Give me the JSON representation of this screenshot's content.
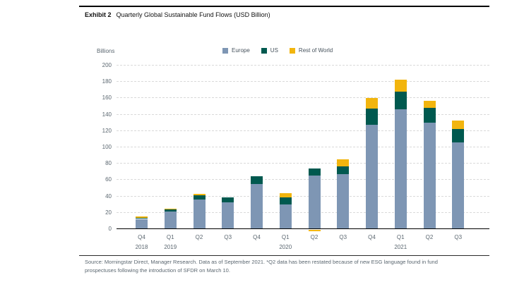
{
  "header": {
    "exhibit_label": "Exhibit 2",
    "title": "Quarterly Global Sustainable Fund Flows (USD Billion)"
  },
  "axis": {
    "unit_label": "Billions"
  },
  "legend": [
    {
      "label": "Europe",
      "color": "#7E96B4"
    },
    {
      "label": "US",
      "color": "#00594F"
    },
    {
      "label": "Rest of World",
      "color": "#F2B50E"
    }
  ],
  "chart_data": {
    "type": "bar",
    "stacked": true,
    "title": "Quarterly Global Sustainable Fund Flows (USD Billion)",
    "categories": [
      "Q4 2018",
      "Q1 2019",
      "Q2 2019",
      "Q3 2019",
      "Q4 2019",
      "Q1 2020",
      "Q2 2020",
      "Q3 2020",
      "Q4 2020",
      "Q1 2021",
      "Q2 2021",
      "Q3 2021"
    ],
    "series": [
      {
        "name": "Europe",
        "color": "#7E96B4",
        "values": [
          12.5,
          21.5,
          36.5,
          33,
          55.5,
          30,
          65.5,
          67,
          128,
          146.5,
          130,
          106
        ]
      },
      {
        "name": "US",
        "color": "#00594F",
        "values": [
          1,
          3,
          4.5,
          5.5,
          9,
          9,
          8.5,
          9.5,
          19.5,
          22,
          18.5,
          16
        ]
      },
      {
        "name": "Rest of World",
        "color": "#F2B50E",
        "values": [
          2,
          0.5,
          2.5,
          0,
          0,
          5,
          -1.5,
          9,
          12.5,
          14.5,
          8.5,
          11
        ]
      }
    ],
    "xlabel": "",
    "ylabel": "Billions",
    "ylim": [
      0,
      200
    ],
    "y_ticks": [
      0,
      20,
      40,
      60,
      80,
      100,
      120,
      140,
      160,
      180,
      200
    ],
    "grid": "horizontal-dashed",
    "legend_position": "top"
  },
  "x_axis": {
    "quarters": [
      "Q4",
      "Q1",
      "Q2",
      "Q3",
      "Q4",
      "Q1",
      "Q2",
      "Q3",
      "Q4",
      "Q1",
      "Q2",
      "Q3"
    ],
    "years": [
      {
        "index": 0,
        "label": "2018"
      },
      {
        "index": 1,
        "label": "2019"
      },
      {
        "index": 5,
        "label": "2020"
      },
      {
        "index": 9,
        "label": "2021"
      }
    ]
  },
  "footer": {
    "line1": "Source: Morningstar Direct, Manager Research. Data as of September 2021. *Q2 data has been restated because of new ESG language found in fund",
    "line2": "prospectuses following the introduction of SFDR on March 10."
  }
}
